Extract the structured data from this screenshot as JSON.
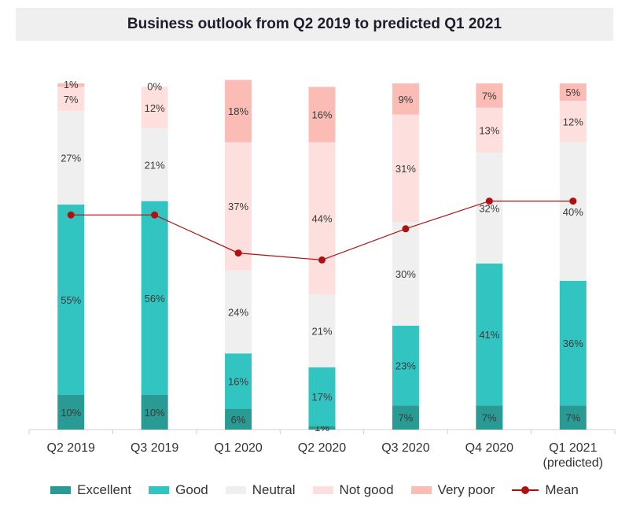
{
  "chart_data": {
    "type": "bar",
    "stacked": true,
    "title": "Business outlook from Q2 2019 to predicted Q1 2021",
    "categories": [
      "Q2 2019",
      "Q3 2019",
      "Q1 2020",
      "Q2 2020",
      "Q3 2020",
      "Q4 2020",
      "Q1 2021 (predicted)"
    ],
    "category_lines": [
      [
        "Q2 2019"
      ],
      [
        "Q3 2019"
      ],
      [
        "Q1 2020"
      ],
      [
        "Q2 2020"
      ],
      [
        "Q3 2020"
      ],
      [
        "Q4 2020"
      ],
      [
        "Q1 2021",
        "(predicted)"
      ]
    ],
    "series": [
      {
        "name": "Excellent",
        "color": "#2a9a94",
        "values": [
          10,
          10,
          6,
          1,
          7,
          7,
          7
        ]
      },
      {
        "name": "Good",
        "color": "#31c4c1",
        "values": [
          55,
          56,
          16,
          17,
          23,
          41,
          36
        ]
      },
      {
        "name": "Neutral",
        "color": "#efefef",
        "values": [
          27,
          21,
          24,
          21,
          30,
          32,
          40
        ]
      },
      {
        "name": "Not good",
        "color": "#fde0de",
        "values": [
          7,
          12,
          37,
          44,
          31,
          13,
          12
        ]
      },
      {
        "name": "Very poor",
        "color": "#fbbcb6",
        "values": [
          1,
          0,
          18,
          16,
          9,
          7,
          5
        ]
      }
    ],
    "mean_line": {
      "name": "Mean",
      "color": "#b01010",
      "values_pct_height": [
        62,
        62,
        51,
        49,
        58,
        66,
        66
      ]
    },
    "ylim": [
      0,
      100
    ],
    "value_suffix": "%",
    "legend": [
      "Excellent",
      "Good",
      "Neutral",
      "Not good",
      "Very poor",
      "Mean"
    ],
    "legend_position": "bottom",
    "grid": false
  }
}
